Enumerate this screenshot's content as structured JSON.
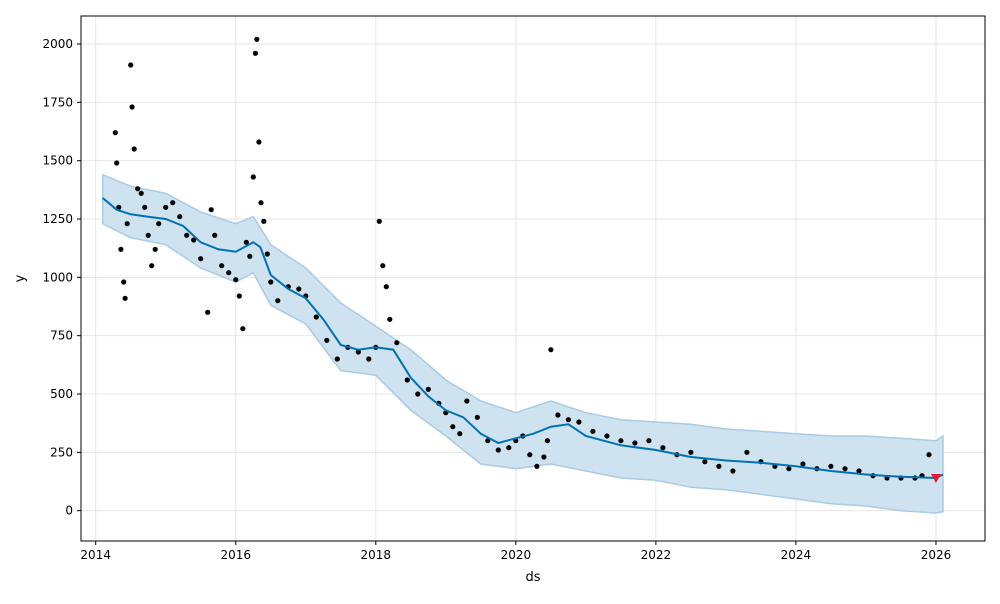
{
  "chart_data": {
    "type": "line",
    "title": "",
    "xlabel": "ds",
    "ylabel": "y",
    "xlim": [
      2013.79,
      2026.7
    ],
    "ylim": [
      -130,
      2120
    ],
    "x_ticks": [
      2014,
      2016,
      2018,
      2020,
      2022,
      2024,
      2026
    ],
    "x_tick_labels": [
      "2014",
      "2016",
      "2018",
      "2020",
      "2022",
      "2024",
      "2026"
    ],
    "y_ticks": [
      0,
      250,
      500,
      750,
      1000,
      1250,
      1500,
      1750,
      2000
    ],
    "y_tick_labels": [
      "0",
      "250",
      "500",
      "750",
      "1000",
      "1250",
      "1500",
      "1750",
      "2000"
    ],
    "grid": true,
    "colors": {
      "forecast_line": "#0072B2",
      "interval_fill": "#cfe2f0",
      "interval_edge": "#a9cbe3",
      "observed_points": "#000000",
      "highlight_marker": "#e8192c",
      "grid": "#e6e6e6"
    },
    "series": [
      {
        "kind": "forecast",
        "x": [
          2014.1,
          2014.3,
          2014.5,
          2014.75,
          2015.0,
          2015.25,
          2015.5,
          2015.75,
          2016.0,
          2016.25,
          2016.35,
          2016.5,
          2016.75,
          2017.0,
          2017.25,
          2017.5,
          2017.75,
          2018.0,
          2018.25,
          2018.5,
          2018.75,
          2019.0,
          2019.25,
          2019.5,
          2019.75,
          2020.0,
          2020.25,
          2020.5,
          2020.75,
          2021.0,
          2021.5,
          2022.0,
          2022.5,
          2023.0,
          2023.5,
          2024.0,
          2024.5,
          2025.0,
          2025.5,
          2026.0,
          2026.1
        ],
        "values": [
          1340,
          1290,
          1270,
          1260,
          1250,
          1220,
          1150,
          1120,
          1110,
          1150,
          1130,
          1010,
          950,
          910,
          820,
          710,
          690,
          700,
          690,
          570,
          490,
          430,
          400,
          330,
          290,
          310,
          330,
          360,
          370,
          320,
          280,
          260,
          230,
          215,
          205,
          190,
          170,
          155,
          145,
          140,
          155
        ]
      },
      {
        "kind": "interval_upper",
        "x": [
          2014.1,
          2014.5,
          2015.0,
          2015.5,
          2016.0,
          2016.25,
          2016.5,
          2017.0,
          2017.5,
          2018.0,
          2018.5,
          2019.0,
          2019.5,
          2020.0,
          2020.5,
          2021.0,
          2021.5,
          2022.0,
          2022.5,
          2023.0,
          2023.5,
          2024.0,
          2024.5,
          2025.0,
          2025.5,
          2026.0,
          2026.1
        ],
        "values": [
          1440,
          1390,
          1360,
          1280,
          1230,
          1260,
          1140,
          1040,
          890,
          790,
          690,
          560,
          470,
          420,
          470,
          420,
          390,
          380,
          370,
          350,
          340,
          330,
          320,
          320,
          310,
          300,
          320
        ]
      },
      {
        "kind": "interval_lower",
        "x": [
          2014.1,
          2014.5,
          2015.0,
          2015.5,
          2016.0,
          2016.25,
          2016.5,
          2017.0,
          2017.5,
          2018.0,
          2018.5,
          2019.0,
          2019.5,
          2020.0,
          2020.5,
          2021.0,
          2021.5,
          2022.0,
          2022.5,
          2023.0,
          2023.5,
          2024.0,
          2024.5,
          2025.0,
          2025.5,
          2026.0,
          2026.1
        ],
        "values": [
          1230,
          1170,
          1140,
          1040,
          980,
          1020,
          880,
          800,
          600,
          580,
          430,
          320,
          200,
          180,
          200,
          170,
          140,
          130,
          100,
          90,
          70,
          50,
          30,
          20,
          0,
          -10,
          -5
        ]
      },
      {
        "kind": "observed",
        "x": [
          2014.28,
          2014.3,
          2014.33,
          2014.36,
          2014.4,
          2014.42,
          2014.45,
          2014.5,
          2014.52,
          2014.55,
          2014.6,
          2014.65,
          2014.7,
          2014.75,
          2014.8,
          2014.85,
          2014.9,
          2015.0,
          2015.1,
          2015.2,
          2015.3,
          2015.4,
          2015.5,
          2015.6,
          2015.65,
          2015.7,
          2015.8,
          2015.9,
          2016.0,
          2016.05,
          2016.1,
          2016.15,
          2016.2,
          2016.25,
          2016.28,
          2016.3,
          2016.33,
          2016.36,
          2016.4,
          2016.45,
          2016.5,
          2016.6,
          2016.75,
          2016.9,
          2017.0,
          2017.15,
          2017.3,
          2017.45,
          2017.6,
          2017.75,
          2017.9,
          2018.0,
          2018.05,
          2018.1,
          2018.15,
          2018.2,
          2018.3,
          2018.45,
          2018.6,
          2018.75,
          2018.9,
          2019.0,
          2019.1,
          2019.2,
          2019.3,
          2019.45,
          2019.6,
          2019.75,
          2019.9,
          2020.0,
          2020.1,
          2020.2,
          2020.3,
          2020.4,
          2020.45,
          2020.5,
          2020.6,
          2020.75,
          2020.9,
          2021.1,
          2021.3,
          2021.5,
          2021.7,
          2021.9,
          2022.1,
          2022.3,
          2022.5,
          2022.7,
          2022.9,
          2023.1,
          2023.3,
          2023.5,
          2023.7,
          2023.9,
          2024.1,
          2024.3,
          2024.5,
          2024.7,
          2024.9,
          2025.1,
          2025.3,
          2025.5,
          2025.7,
          2025.8,
          2025.9
        ],
        "values": [
          1620,
          1490,
          1300,
          1120,
          980,
          910,
          1230,
          1910,
          1730,
          1550,
          1380,
          1360,
          1300,
          1180,
          1050,
          1120,
          1230,
          1300,
          1320,
          1260,
          1180,
          1160,
          1080,
          850,
          1290,
          1180,
          1050,
          1020,
          990,
          920,
          780,
          1150,
          1090,
          1430,
          1960,
          2020,
          1580,
          1320,
          1240,
          1100,
          980,
          900,
          960,
          950,
          920,
          830,
          730,
          650,
          700,
          680,
          650,
          700,
          1240,
          1050,
          960,
          820,
          720,
          560,
          500,
          520,
          460,
          420,
          360,
          330,
          470,
          400,
          300,
          260,
          270,
          300,
          320,
          240,
          190,
          230,
          300,
          690,
          410,
          390,
          380,
          340,
          320,
          300,
          290,
          300,
          270,
          240,
          250,
          210,
          190,
          170,
          250,
          210,
          190,
          180,
          200,
          180,
          190,
          180,
          170,
          150,
          140,
          140,
          140,
          150,
          240
        ]
      }
    ],
    "highlight_point": {
      "x": 2026.0,
      "y": 140
    }
  }
}
